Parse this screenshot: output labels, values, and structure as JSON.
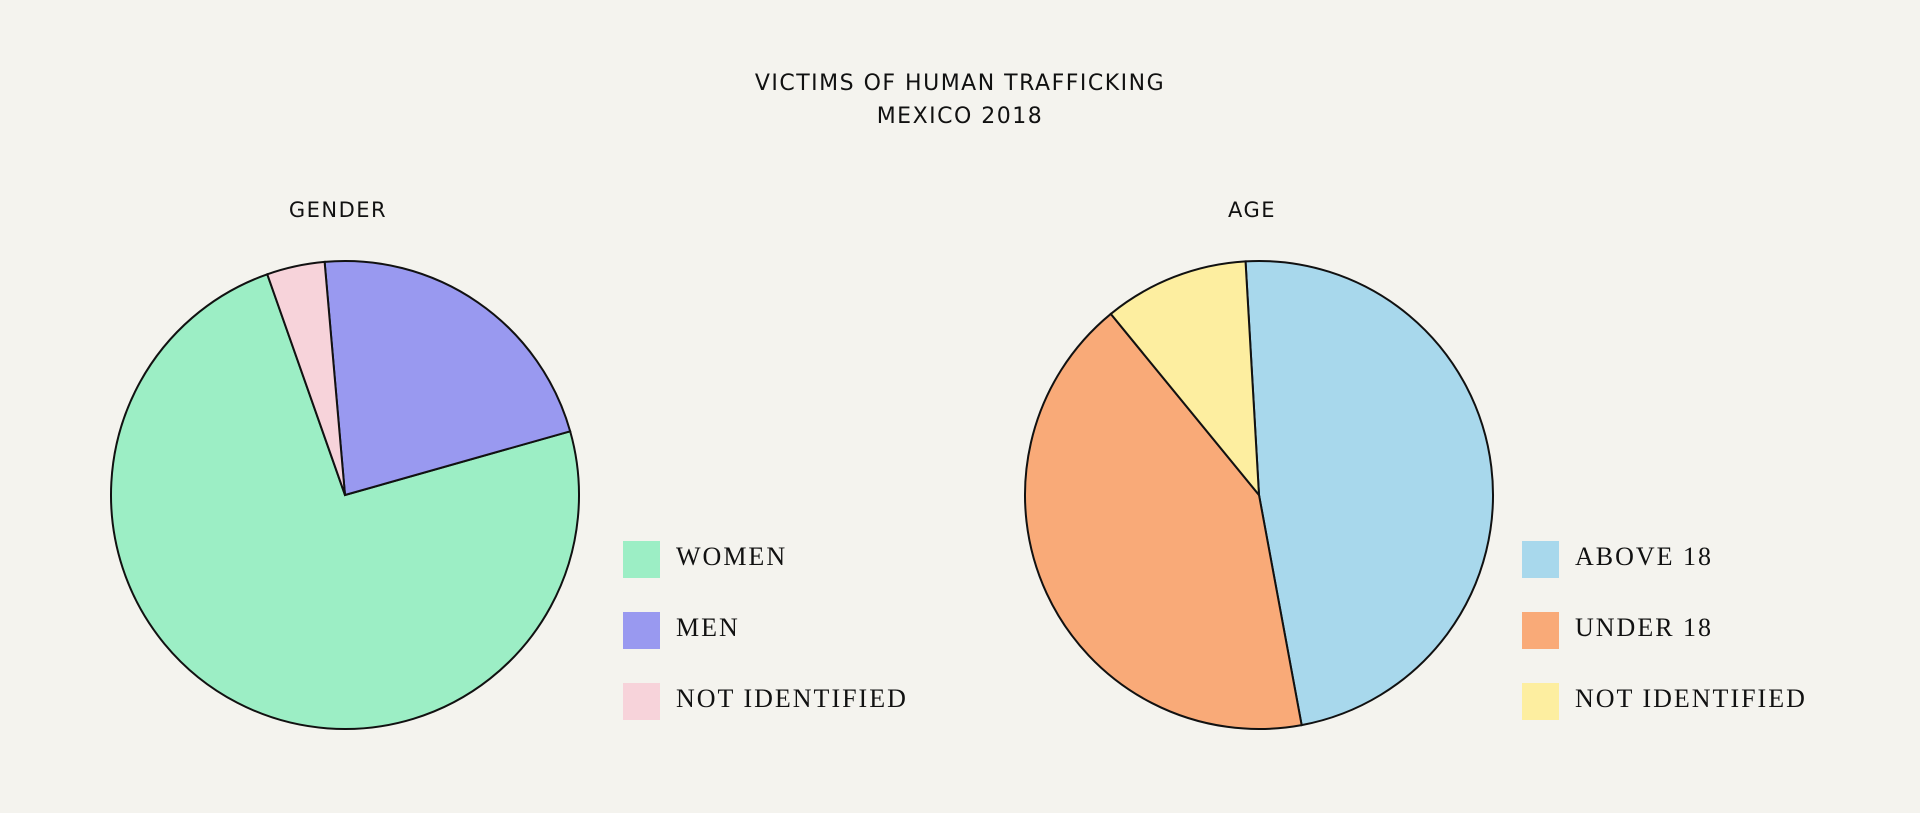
{
  "title": "VICTIMS OF HUMAN TRAFFICKING",
  "subtitle": "MEXICO 2018",
  "chart_data": [
    {
      "type": "pie",
      "title": "GENDER",
      "categories": [
        "WOMEN",
        "MEN",
        "NOT IDENTIFIED"
      ],
      "values": [
        74,
        22,
        4
      ],
      "colors": [
        "#9ceec5",
        "#9999f0",
        "#f7d3da"
      ]
    },
    {
      "type": "pie",
      "title": "AGE",
      "categories": [
        "ABOVE 18",
        "UNDER 18",
        "NOT IDENTIFIED"
      ],
      "values": [
        48,
        42,
        10
      ],
      "colors": [
        "#a8d8ec",
        "#f9aa78",
        "#fdeea0"
      ]
    }
  ]
}
